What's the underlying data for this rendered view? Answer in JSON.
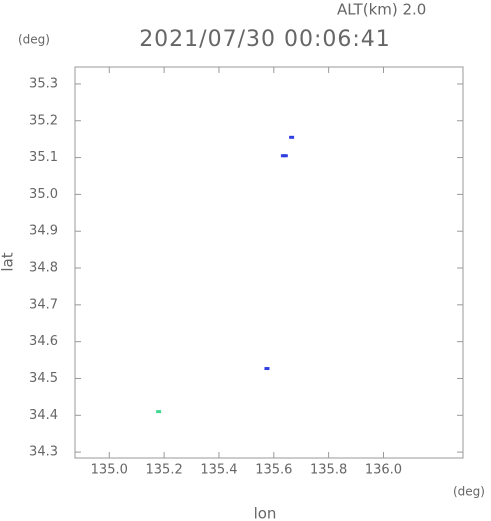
{
  "chart_data": {
    "type": "scatter",
    "header": "ALT(km) 2.0",
    "title": "2021/07/30 00:06:41",
    "y_unit": "(deg)",
    "x_unit": "(deg)",
    "xlabel": "lon",
    "ylabel": "lat",
    "x": [
      135.18,
      135.575,
      135.635,
      135.642,
      135.665
    ],
    "y": [
      34.41,
      34.527,
      35.105,
      35.105,
      35.155
    ],
    "colors": [
      "#40d890",
      "#3040e0",
      "#3040e0",
      "#3040e0",
      "#3040e0"
    ],
    "xlim": [
      134.875,
      136.29
    ],
    "ylim": [
      34.284,
      35.346
    ],
    "xticks": [
      {
        "value": 135,
        "label": "135.0"
      },
      135.2,
      135.4,
      135.6,
      135.8,
      {
        "value": 136,
        "label": "136.0"
      }
    ],
    "yticks": [
      34.3,
      34.4,
      34.5,
      34.6,
      34.7,
      34.8,
      34.9,
      {
        "value": 35,
        "label": "35.0"
      },
      35.1,
      35.2,
      35.3
    ]
  }
}
